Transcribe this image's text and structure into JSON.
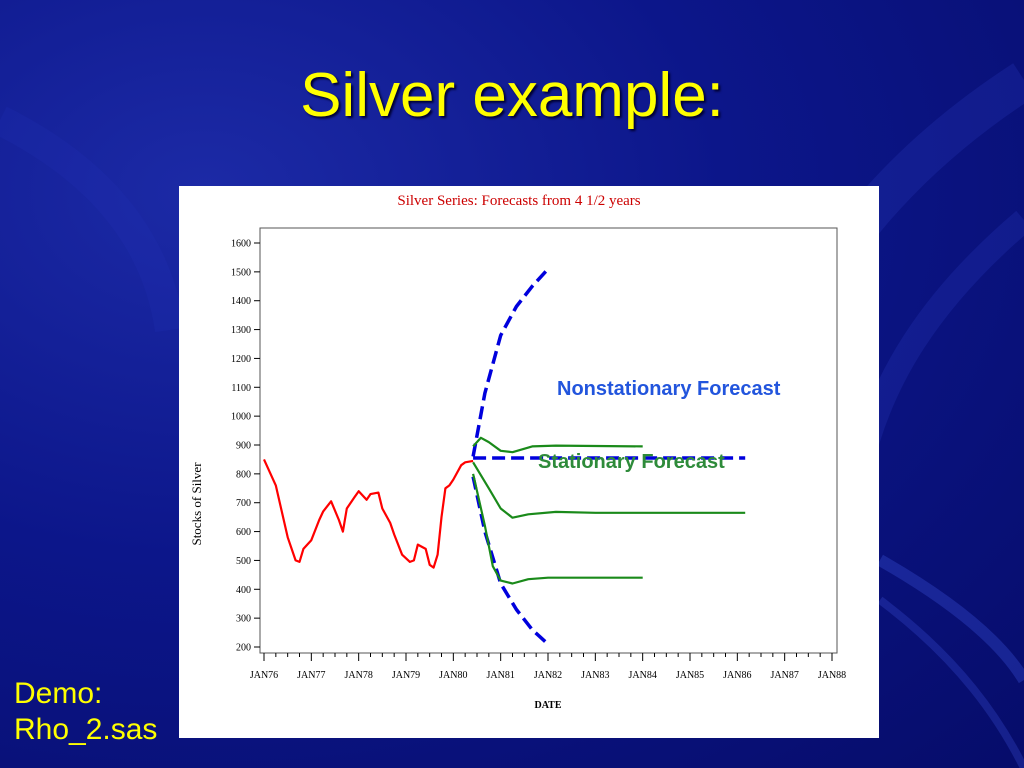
{
  "slide": {
    "title": "Silver example:",
    "demo_line1": "Demo:",
    "demo_line2": "Rho_2.sas"
  },
  "colors": {
    "background": "#0c168a",
    "title": "#ffff00",
    "history": "#ff0000",
    "stationary": "#1a8a1a",
    "nonstationary": "#0000dd",
    "nonstationary_label": "#2255dd",
    "stationary_label": "#2e8b3a",
    "chart_title": "#cc0000"
  },
  "chart_data": {
    "type": "line",
    "title": "Silver Series:  Forecasts from 4 1/2 years",
    "xlabel": "DATE",
    "ylabel": "Stocks of Silver",
    "ylim": [
      200,
      1600
    ],
    "yticks": [
      200,
      300,
      400,
      500,
      600,
      700,
      800,
      900,
      1000,
      1100,
      1200,
      1300,
      1400,
      1500,
      1600
    ],
    "xlim": [
      "1976-01",
      "1988-01"
    ],
    "xticks": [
      "JAN76",
      "JAN77",
      "JAN78",
      "JAN79",
      "JAN80",
      "JAN81",
      "JAN82",
      "JAN83",
      "JAN84",
      "JAN85",
      "JAN86",
      "JAN87",
      "JAN88"
    ],
    "grid": false,
    "annotations": [
      {
        "text": "Nonstationary Forecast",
        "refers_to": "nonstationary"
      },
      {
        "text": "Stationary Forecast",
        "refers_to": "stationary"
      }
    ],
    "series": [
      {
        "id": "history",
        "style": "solid",
        "color": "#ff0000",
        "x": [
          "1976-01",
          "1976-04",
          "1976-07",
          "1976-09",
          "1976-10",
          "1976-11",
          "1977-01",
          "1977-03",
          "1977-04",
          "1977-06",
          "1977-08",
          "1977-09",
          "1977-10",
          "1977-12",
          "1978-01",
          "1978-03",
          "1978-04",
          "1978-06",
          "1978-07",
          "1978-09",
          "1978-10",
          "1978-12",
          "1979-02",
          "1979-03",
          "1979-04",
          "1979-06",
          "1979-07",
          "1979-08",
          "1979-09",
          "1979-10",
          "1979-11",
          "1979-12",
          "1980-01",
          "1980-03",
          "1980-04",
          "1980-06"
        ],
        "y": [
          850,
          760,
          580,
          500,
          495,
          540,
          570,
          640,
          670,
          705,
          640,
          600,
          680,
          720,
          740,
          710,
          730,
          735,
          680,
          630,
          590,
          520,
          495,
          500,
          555,
          540,
          485,
          475,
          520,
          650,
          750,
          760,
          780,
          830,
          840,
          845
        ]
      },
      {
        "id": "nonstationary",
        "style": "dashed",
        "color": "#0000dd",
        "lines": [
          {
            "name": "upper",
            "x": [
              "1980-06",
              "1980-09",
              "1981-01",
              "1981-05",
              "1981-09",
              "1982-01"
            ],
            "y": [
              860,
              1080,
              1280,
              1380,
              1450,
              1510
            ]
          },
          {
            "name": "forecast",
            "x": [
              "1980-06",
              "1982-01",
              "1984-01",
              "1986-03"
            ],
            "y": [
              855,
              855,
              855,
              855
            ]
          },
          {
            "name": "lower",
            "x": [
              "1980-06",
              "1980-09",
              "1981-01",
              "1981-05",
              "1981-09",
              "1982-01"
            ],
            "y": [
              790,
              600,
              420,
              330,
              260,
              210
            ]
          }
        ]
      },
      {
        "id": "stationary",
        "style": "solid",
        "color": "#1a8a1a",
        "lines": [
          {
            "name": "upper",
            "x": [
              "1980-06",
              "1980-08",
              "1980-10",
              "1981-01",
              "1981-04",
              "1981-09",
              "1982-03",
              "1984-01"
            ],
            "y": [
              895,
              925,
              910,
              880,
              875,
              895,
              898,
              895
            ]
          },
          {
            "name": "forecast",
            "x": [
              "1980-06",
              "1980-10",
              "1981-01",
              "1981-04",
              "1981-08",
              "1982-03",
              "1983-01",
              "1984-01",
              "1986-03"
            ],
            "y": [
              840,
              750,
              680,
              648,
              660,
              668,
              665,
              665,
              665
            ]
          },
          {
            "name": "lower",
            "x": [
              "1980-06",
              "1980-09",
              "1980-11",
              "1981-01",
              "1981-04",
              "1981-08",
              "1982-01",
              "1984-01"
            ],
            "y": [
              800,
              620,
              480,
              430,
              420,
              435,
              440,
              440
            ]
          }
        ]
      }
    ]
  }
}
